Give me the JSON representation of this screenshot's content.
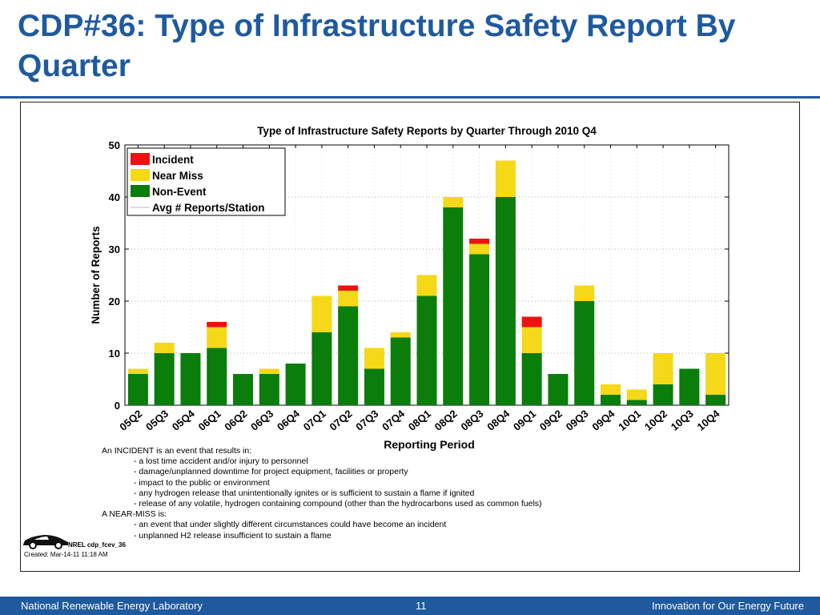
{
  "slide": {
    "title": "CDP#36: Type of Infrastructure Safety Report By Quarter",
    "footer_left": "National Renewable Energy Laboratory",
    "footer_page": "11",
    "footer_right": "Innovation for Our Energy Future",
    "nrel_tag": "NREL cdp_fcev_36",
    "created": "Created: Mar-14-11 11:18 AM",
    "brand_color": "#1f5a9e"
  },
  "notes": [
    {
      "text": "An INCIDENT is an event that results in:",
      "indent": false
    },
    {
      "text": "- a lost time accident and/or injury to personnel",
      "indent": true
    },
    {
      "text": "- damage/unplanned downtime for project equipment, facilities or property",
      "indent": true
    },
    {
      "text": "- impact to the public or environment",
      "indent": true
    },
    {
      "text": "- any hydrogen release that unintentionally ignites or is sufficient to sustain a flame if ignited",
      "indent": true
    },
    {
      "text": "- release of any volatile, hydrogen containing compound (other than the hydrocarbons used as common fuels)",
      "indent": true
    },
    {
      "text": "A NEAR-MISS is:",
      "indent": false
    },
    {
      "text": "- an event that under slightly different circumstances could have become an incident",
      "indent": true
    },
    {
      "text": "- unplanned H2 release insufficient to sustain a flame",
      "indent": true
    }
  ],
  "chart_data": {
    "type": "bar",
    "stacked": true,
    "title": "Type of Infrastructure Safety Reports by Quarter Through 2010 Q4",
    "xlabel": "Reporting Period",
    "ylabel": "Number of Reports",
    "ylim": [
      0,
      50
    ],
    "yticks": [
      0,
      10,
      20,
      30,
      40,
      50
    ],
    "grid": true,
    "legend_position": "top-left",
    "categories": [
      "05Q2",
      "05Q3",
      "05Q4",
      "06Q1",
      "06Q2",
      "06Q3",
      "06Q4",
      "07Q1",
      "07Q2",
      "07Q3",
      "07Q4",
      "08Q1",
      "08Q2",
      "08Q3",
      "08Q4",
      "09Q1",
      "09Q2",
      "09Q3",
      "09Q4",
      "10Q1",
      "10Q2",
      "10Q3",
      "10Q4"
    ],
    "series": [
      {
        "name": "Non-Event",
        "color": "#0a7d0a",
        "values": [
          6,
          10,
          10,
          11,
          6,
          6,
          8,
          14,
          19,
          7,
          13,
          21,
          38,
          29,
          40,
          10,
          6,
          20,
          2,
          1,
          4,
          7,
          2
        ]
      },
      {
        "name": "Near Miss",
        "color": "#f5d817",
        "values": [
          1,
          2,
          0,
          4,
          0,
          1,
          0,
          7,
          3,
          4,
          1,
          4,
          2,
          2,
          7,
          5,
          0,
          3,
          2,
          2,
          6,
          0,
          8
        ]
      },
      {
        "name": "Incident",
        "color": "#ee1111",
        "values": [
          0,
          0,
          0,
          1,
          0,
          0,
          0,
          0,
          1,
          0,
          0,
          0,
          0,
          1,
          0,
          2,
          0,
          0,
          0,
          0,
          0,
          0,
          0
        ]
      }
    ],
    "legend": [
      {
        "name": "Incident",
        "color": "#ee1111",
        "kind": "box"
      },
      {
        "name": "Near Miss",
        "color": "#f5d817",
        "kind": "box"
      },
      {
        "name": "Non-Event",
        "color": "#0a7d0a",
        "kind": "box"
      },
      {
        "name": "Avg # Reports/Station",
        "color": "#bbbbbb",
        "kind": "line"
      }
    ]
  }
}
